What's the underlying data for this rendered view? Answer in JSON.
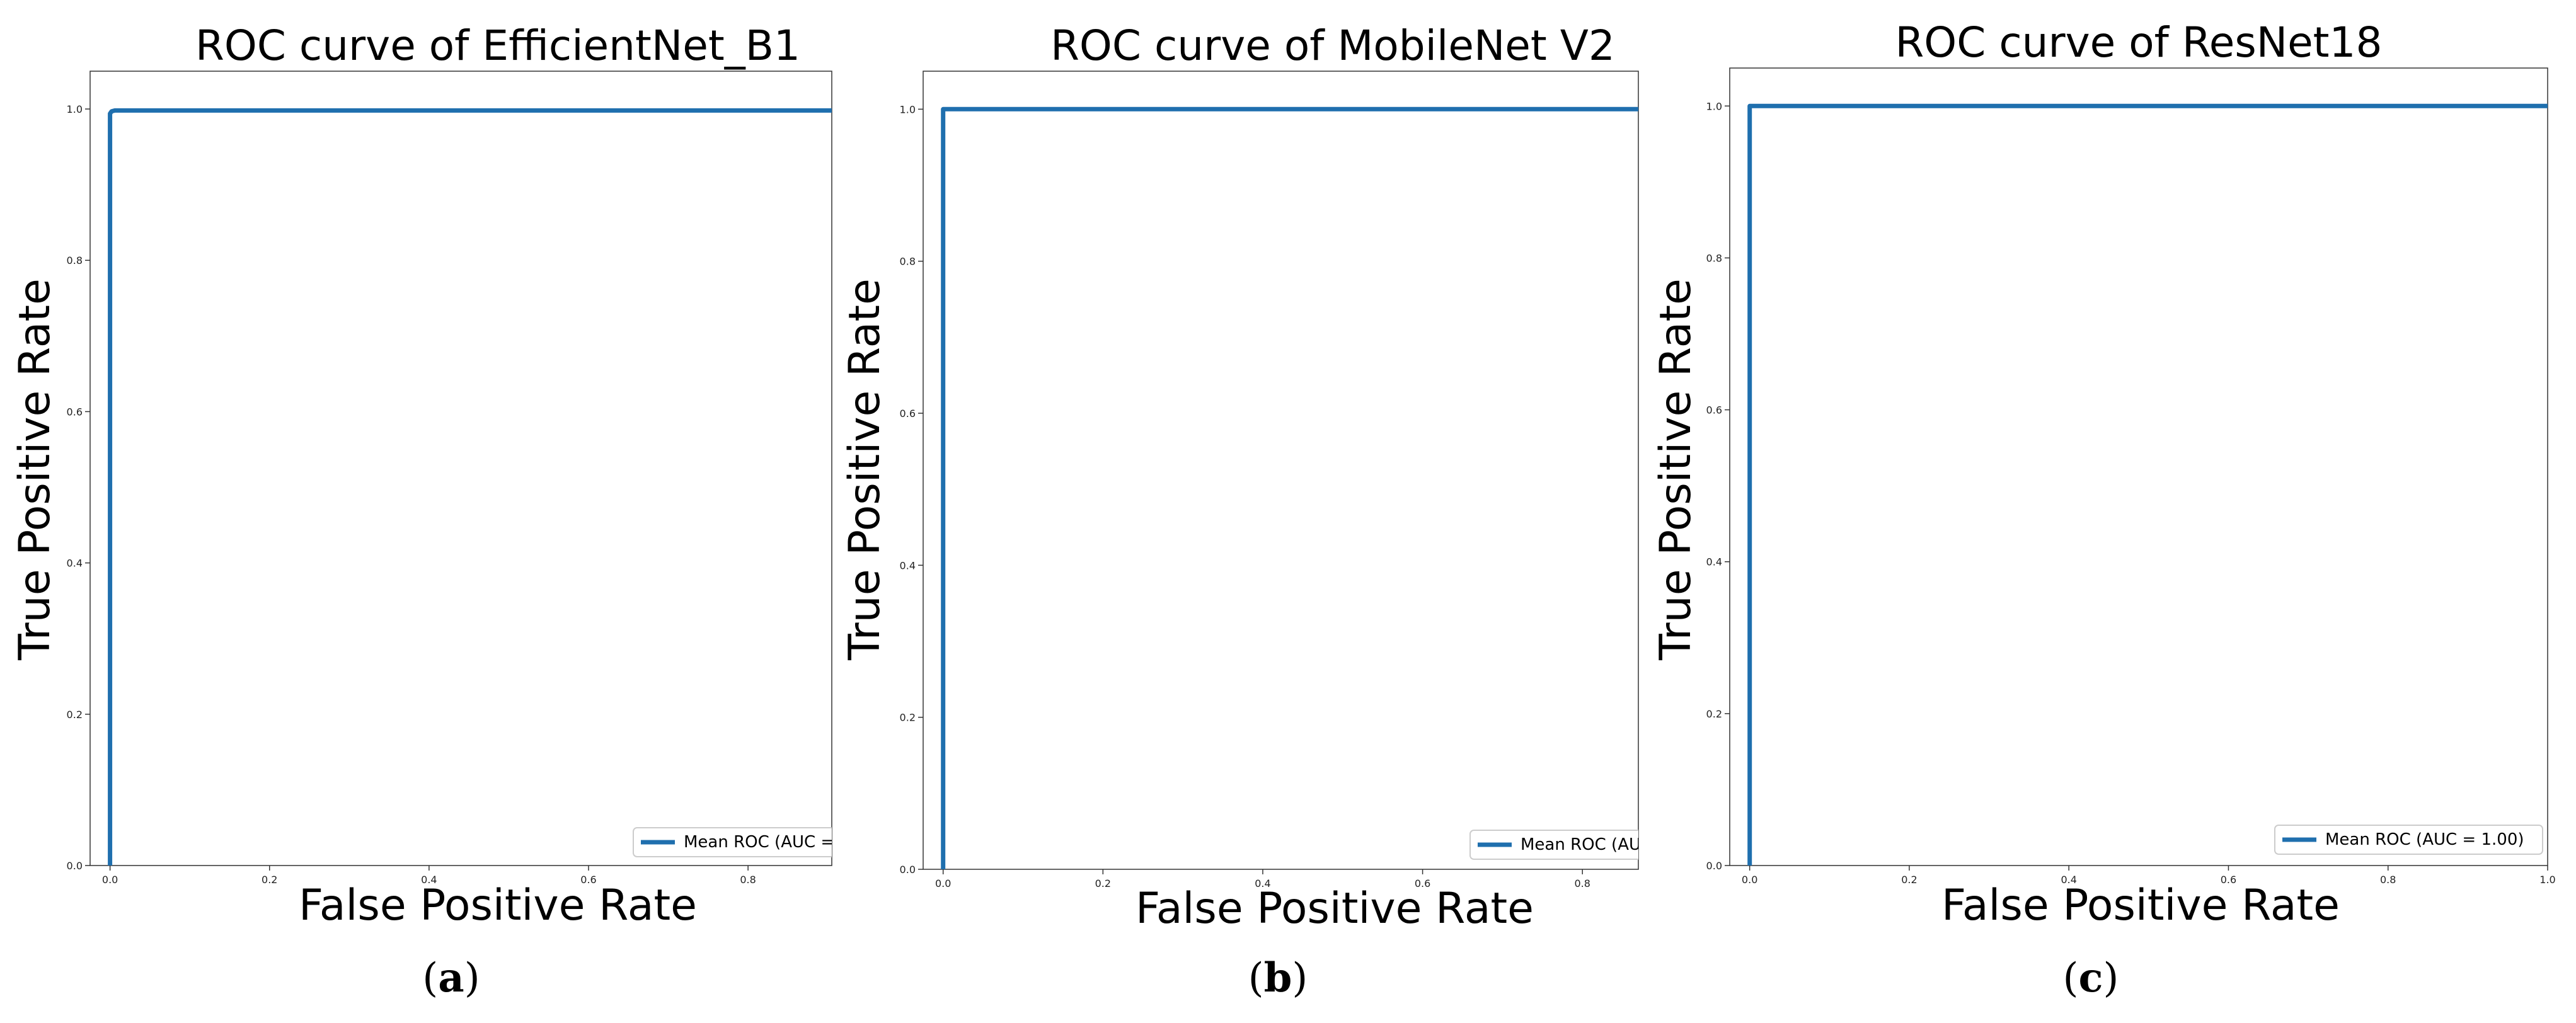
{
  "figure": {
    "captions": [
      {
        "open": "(",
        "letter": "a",
        "close": ")"
      },
      {
        "open": "(",
        "letter": "b",
        "close": ")"
      },
      {
        "open": "(",
        "letter": "c",
        "close": ")"
      }
    ]
  },
  "chart_data": [
    {
      "type": "line",
      "title": "ROC curve of EfficientNet_B1",
      "xlabel": "False Positive Rate",
      "ylabel": "True Positive Rate",
      "xlim": [
        -0.025,
        0.905
      ],
      "ylim": [
        0.0,
        1.05
      ],
      "xticks": [
        0.0,
        0.2,
        0.4,
        0.6,
        0.8
      ],
      "xtick_labels": [
        "0.0",
        "0.2",
        "0.4",
        "0.6",
        "0.8"
      ],
      "yticks": [
        0.0,
        0.2,
        0.4,
        0.6,
        0.8,
        1.0
      ],
      "ytick_labels": [
        "0.0",
        "0.2",
        "0.4",
        "0.6",
        "0.8",
        "1.0"
      ],
      "grid": false,
      "legend": {
        "position": "bottom-right",
        "entries": [
          "Mean ROC (AUC ="
        ]
      },
      "series": [
        {
          "name": "Mean ROC",
          "color": "#1f6fae",
          "x": [
            0.0,
            0.0,
            0.002,
            0.006,
            1.0
          ],
          "y": [
            0.0,
            0.994,
            0.997,
            0.998,
            0.998
          ]
        }
      ]
    },
    {
      "type": "line",
      "title": "ROC curve of MobileNet V2",
      "xlabel": "False Positive Rate",
      "ylabel": "True Positive Rate",
      "xlim": [
        -0.025,
        0.87
      ],
      "ylim": [
        0.0,
        1.05
      ],
      "xticks": [
        0.0,
        0.2,
        0.4,
        0.6,
        0.8
      ],
      "xtick_labels": [
        "0.0",
        "0.2",
        "0.4",
        "0.6",
        "0.8"
      ],
      "yticks": [
        0.0,
        0.2,
        0.4,
        0.6,
        0.8,
        1.0
      ],
      "ytick_labels": [
        "0.0",
        "0.2",
        "0.4",
        "0.6",
        "0.8",
        "1.0"
      ],
      "grid": false,
      "legend": {
        "position": "bottom-right",
        "entries": [
          "Mean ROC (AU"
        ]
      },
      "series": [
        {
          "name": "Mean ROC",
          "color": "#1f6fae",
          "x": [
            0.0,
            0.0,
            1.0
          ],
          "y": [
            0.0,
            1.0,
            1.0
          ]
        }
      ]
    },
    {
      "type": "line",
      "title": "ROC curve of ResNet18",
      "xlabel": "False Positive Rate",
      "ylabel": "True Positive Rate",
      "xlim": [
        -0.025,
        1.0
      ],
      "ylim": [
        0.0,
        1.05
      ],
      "xticks": [
        0.0,
        0.2,
        0.4,
        0.6,
        0.8,
        1.0
      ],
      "xtick_labels": [
        "0.0",
        "0.2",
        "0.4",
        "0.6",
        "0.8",
        "1.0"
      ],
      "yticks": [
        0.0,
        0.2,
        0.4,
        0.6,
        0.8,
        1.0
      ],
      "ytick_labels": [
        "0.0",
        "0.2",
        "0.4",
        "0.6",
        "0.8",
        "1.0"
      ],
      "grid": false,
      "legend": {
        "position": "bottom-right",
        "entries": [
          "Mean ROC (AUC = 1.00)"
        ]
      },
      "series": [
        {
          "name": "Mean ROC",
          "color": "#1f6fae",
          "x": [
            0.0,
            0.0,
            1.0
          ],
          "y": [
            0.0,
            1.0,
            1.0
          ]
        }
      ]
    }
  ]
}
